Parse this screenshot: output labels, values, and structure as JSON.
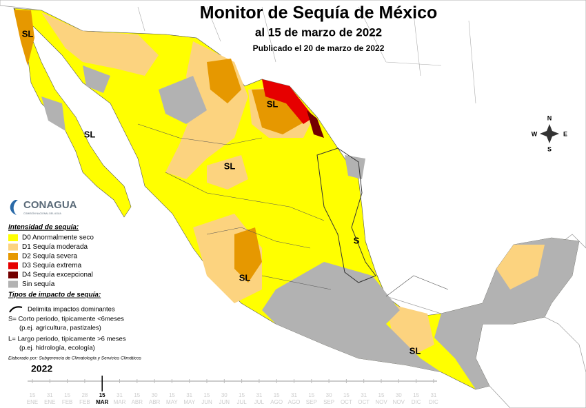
{
  "header": {
    "title": "Monitor de Sequía de México",
    "date": "al 15 de marzo de 2022",
    "published": "Publicado el 20 de marzo de 2022"
  },
  "compass": {
    "n": "N",
    "e": "E",
    "s": "S",
    "w": "W"
  },
  "logo": {
    "name": "CONAGUA",
    "subtitle": "COMISIÓN NACIONAL DEL AGUA"
  },
  "legend": {
    "intensity_title": "Intensidad de sequía:",
    "intensity": [
      {
        "label": "D0 Anormalmente seco",
        "color": "#ffff00"
      },
      {
        "label": "D1 Sequía moderada",
        "color": "#fcd37f"
      },
      {
        "label": "D2 Sequía severa",
        "color": "#e69800"
      },
      {
        "label": "D3 Sequía extrema",
        "color": "#e60000"
      },
      {
        "label": "D4 Sequía excepcional",
        "color": "#730000"
      },
      {
        "label": "Sin sequía",
        "color": "#b2b2b2"
      }
    ],
    "impact_title": "Tipos de impacto de sequía:",
    "impact_line": "Delimita impactos dominantes",
    "impact_notes": [
      "S= Corto periodo, típicamente <6meses",
      "(p.ej. agricultura, pastizales)",
      "L= Largo periodo, típicamente >6 meses",
      "(p.ej. hidrología, ecología)"
    ]
  },
  "credit": "Elaborado por: Subgerencia de Climatología y Servicios Climáticos",
  "timeline": {
    "year": "2022",
    "days": [
      15,
      31,
      15,
      28,
      15,
      31,
      15,
      30,
      15,
      31,
      15,
      30,
      15,
      31,
      15,
      31,
      15,
      30,
      15,
      31,
      15,
      30,
      15,
      31
    ],
    "months": [
      "ENE",
      "ENE",
      "FEB",
      "FEB",
      "MAR",
      "MAR",
      "ABR",
      "ABR",
      "MAY",
      "MAY",
      "JUN",
      "JUN",
      "JUL",
      "JUL",
      "AGO",
      "AGO",
      "SEP",
      "SEP",
      "OCT",
      "OCT",
      "NOV",
      "NOV",
      "DIC",
      "DIC"
    ],
    "current": 4
  },
  "map_labels": [
    "SL",
    "SL",
    "SL",
    "SL",
    "SL",
    "SL",
    "S"
  ]
}
